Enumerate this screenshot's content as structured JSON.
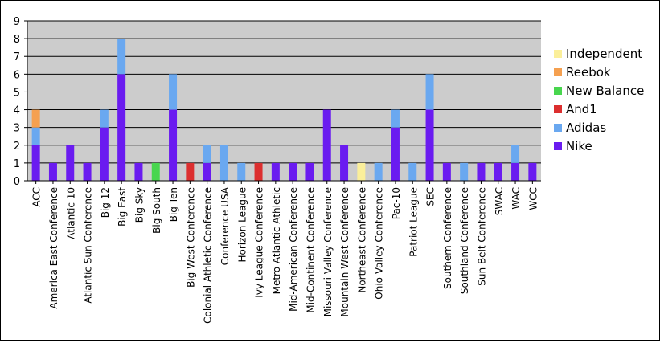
{
  "chart_data": {
    "type": "bar",
    "stacked": true,
    "categories": [
      "ACC",
      "America East Conference",
      "Atlantic 10",
      "Atlantic Sun Conference",
      "Big 12",
      "Big East",
      "Big Sky",
      "Big South",
      "Big Ten",
      "Big West Conference",
      "Colonial Athletic Conference",
      "Conference USA",
      "Horizon League",
      "Ivy League Conference",
      "Metro Atlantic Athletic",
      "Mid-American Conference",
      "Mid-Continent Conference",
      "Missouri Valley Conference",
      "Mountain West Conference",
      "Northeast Conference",
      "Ohio Valley Conference",
      "Pac-10",
      "Patriot League",
      "SEC",
      "Southern Conference",
      "Southland Conference",
      "Sun Belt Conference",
      "SWAC",
      "WAC",
      "WCC"
    ],
    "series": [
      {
        "name": "Nike",
        "color": "#6a1bf0",
        "values": [
          2,
          1,
          2,
          1,
          3,
          6,
          1,
          0,
          4,
          0,
          1,
          0,
          0,
          0,
          1,
          1,
          1,
          4,
          2,
          0,
          0,
          3,
          0,
          4,
          1,
          0,
          1,
          1,
          1,
          1
        ]
      },
      {
        "name": "Adidas",
        "color": "#6aa8f0",
        "values": [
          1,
          0,
          0,
          0,
          1,
          2,
          0,
          0,
          2,
          0,
          1,
          2,
          1,
          0,
          0,
          0,
          0,
          0,
          0,
          0,
          1,
          1,
          1,
          2,
          0,
          1,
          0,
          0,
          1,
          0
        ]
      },
      {
        "name": "And1",
        "color": "#dc2f2f",
        "values": [
          0,
          0,
          0,
          0,
          0,
          0,
          0,
          0,
          0,
          1,
          0,
          0,
          0,
          1,
          0,
          0,
          0,
          0,
          0,
          0,
          0,
          0,
          0,
          0,
          0,
          0,
          0,
          0,
          0,
          0
        ]
      },
      {
        "name": "New Balance",
        "color": "#48d64e",
        "values": [
          0,
          0,
          0,
          0,
          0,
          0,
          0,
          1,
          0,
          0,
          0,
          0,
          0,
          0,
          0,
          0,
          0,
          0,
          0,
          0,
          0,
          0,
          0,
          0,
          0,
          0,
          0,
          0,
          0,
          0
        ]
      },
      {
        "name": "Reebok",
        "color": "#f5a050",
        "values": [
          1,
          0,
          0,
          0,
          0,
          0,
          0,
          0,
          0,
          0,
          0,
          0,
          0,
          0,
          0,
          0,
          0,
          0,
          0,
          0,
          0,
          0,
          0,
          0,
          0,
          0,
          0,
          0,
          0,
          0
        ]
      },
      {
        "name": "Independent",
        "color": "#fbef9a",
        "values": [
          0,
          0,
          0,
          0,
          0,
          0,
          0,
          0,
          0,
          0,
          0,
          0,
          0,
          0,
          0,
          0,
          0,
          0,
          0,
          1,
          0,
          0,
          0,
          0,
          0,
          0,
          0,
          0,
          0,
          0
        ]
      }
    ],
    "legend_order": [
      "Independent",
      "Reebok",
      "New Balance",
      "And1",
      "Adidas",
      "Nike"
    ],
    "y_ticks": [
      "0",
      "1",
      "2",
      "3",
      "4",
      "5",
      "6",
      "7",
      "8",
      "9"
    ],
    "ylim": [
      0,
      9
    ],
    "grid": true,
    "legend_position": "right",
    "plot_background": "#cccccc"
  }
}
